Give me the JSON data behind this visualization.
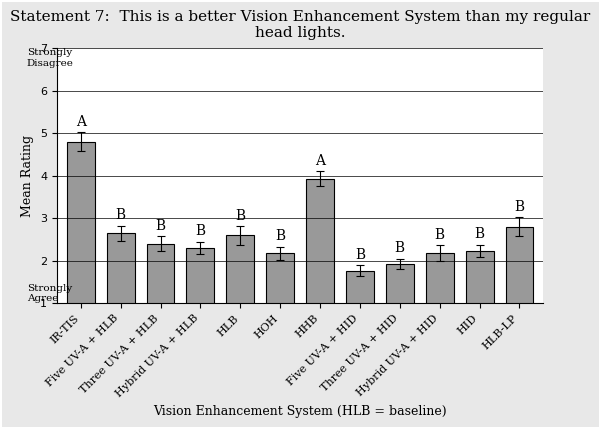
{
  "title": "Statement 7:  This is a better Vision Enhancement System than my regular\nhead lights.",
  "xlabel": "Vision Enhancement System (HLB = baseline)",
  "ylabel": "Mean Rating",
  "categories": [
    "IR-TIS",
    "Five UV-A + HLB",
    "Three UV-A + HLB",
    "Hybrid UV-A + HLB",
    "HLB",
    "HOH",
    "HHB",
    "Five UV-A + HID",
    "Three UV-A + HID",
    "Hybrid UV-A + HID",
    "HID",
    "HLB-LP"
  ],
  "values": [
    4.8,
    2.65,
    2.4,
    2.3,
    2.6,
    2.18,
    3.93,
    1.77,
    1.93,
    2.18,
    2.23,
    2.8
  ],
  "errors": [
    0.22,
    0.18,
    0.18,
    0.15,
    0.22,
    0.15,
    0.18,
    0.12,
    0.12,
    0.18,
    0.15,
    0.22
  ],
  "labels": [
    "A",
    "B",
    "B",
    "B",
    "B",
    "B",
    "A",
    "B",
    "B",
    "B",
    "B",
    "B"
  ],
  "bar_color": "#999999",
  "bar_edge_color": "#000000",
  "ylim": [
    1,
    7
  ],
  "yticks": [
    1,
    2,
    3,
    4,
    5,
    6,
    7
  ],
  "ylabel_strongly_disagree": "Strongly\nDisagree",
  "ylabel_strongly_agree": "Strongly\nAgree",
  "title_fontsize": 11,
  "axis_label_fontsize": 9,
  "tick_fontsize": 8,
  "label_fontsize": 10,
  "background_color": "#ffffff",
  "fig_facecolor": "#e8e8e8"
}
